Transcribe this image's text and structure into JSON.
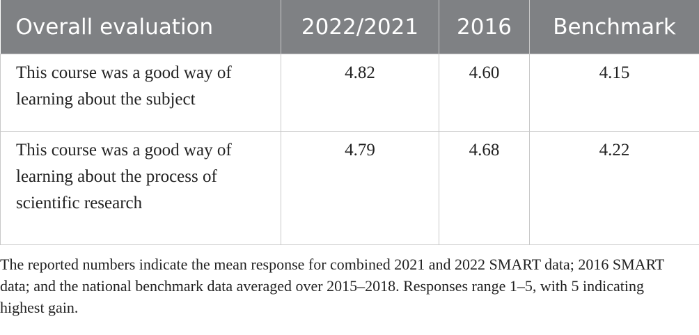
{
  "table": {
    "header": [
      "Overall evaluation",
      "2022/2021",
      "2016",
      "Benchmark"
    ],
    "rows": [
      [
        "This course was a good way of learning about the subject",
        "4.82",
        "4.60",
        "4.15"
      ],
      [
        "This course was a good way of learning about the process of scientific research",
        "4.79",
        "4.68",
        "4.22"
      ]
    ]
  },
  "footnote": "The reported numbers indicate the mean response for combined 2021 and 2022 SMART data; 2016 SMART data; and the national benchmark data averaged over 2015–2018. Responses range 1–5, with 5 indicating highest gain."
}
